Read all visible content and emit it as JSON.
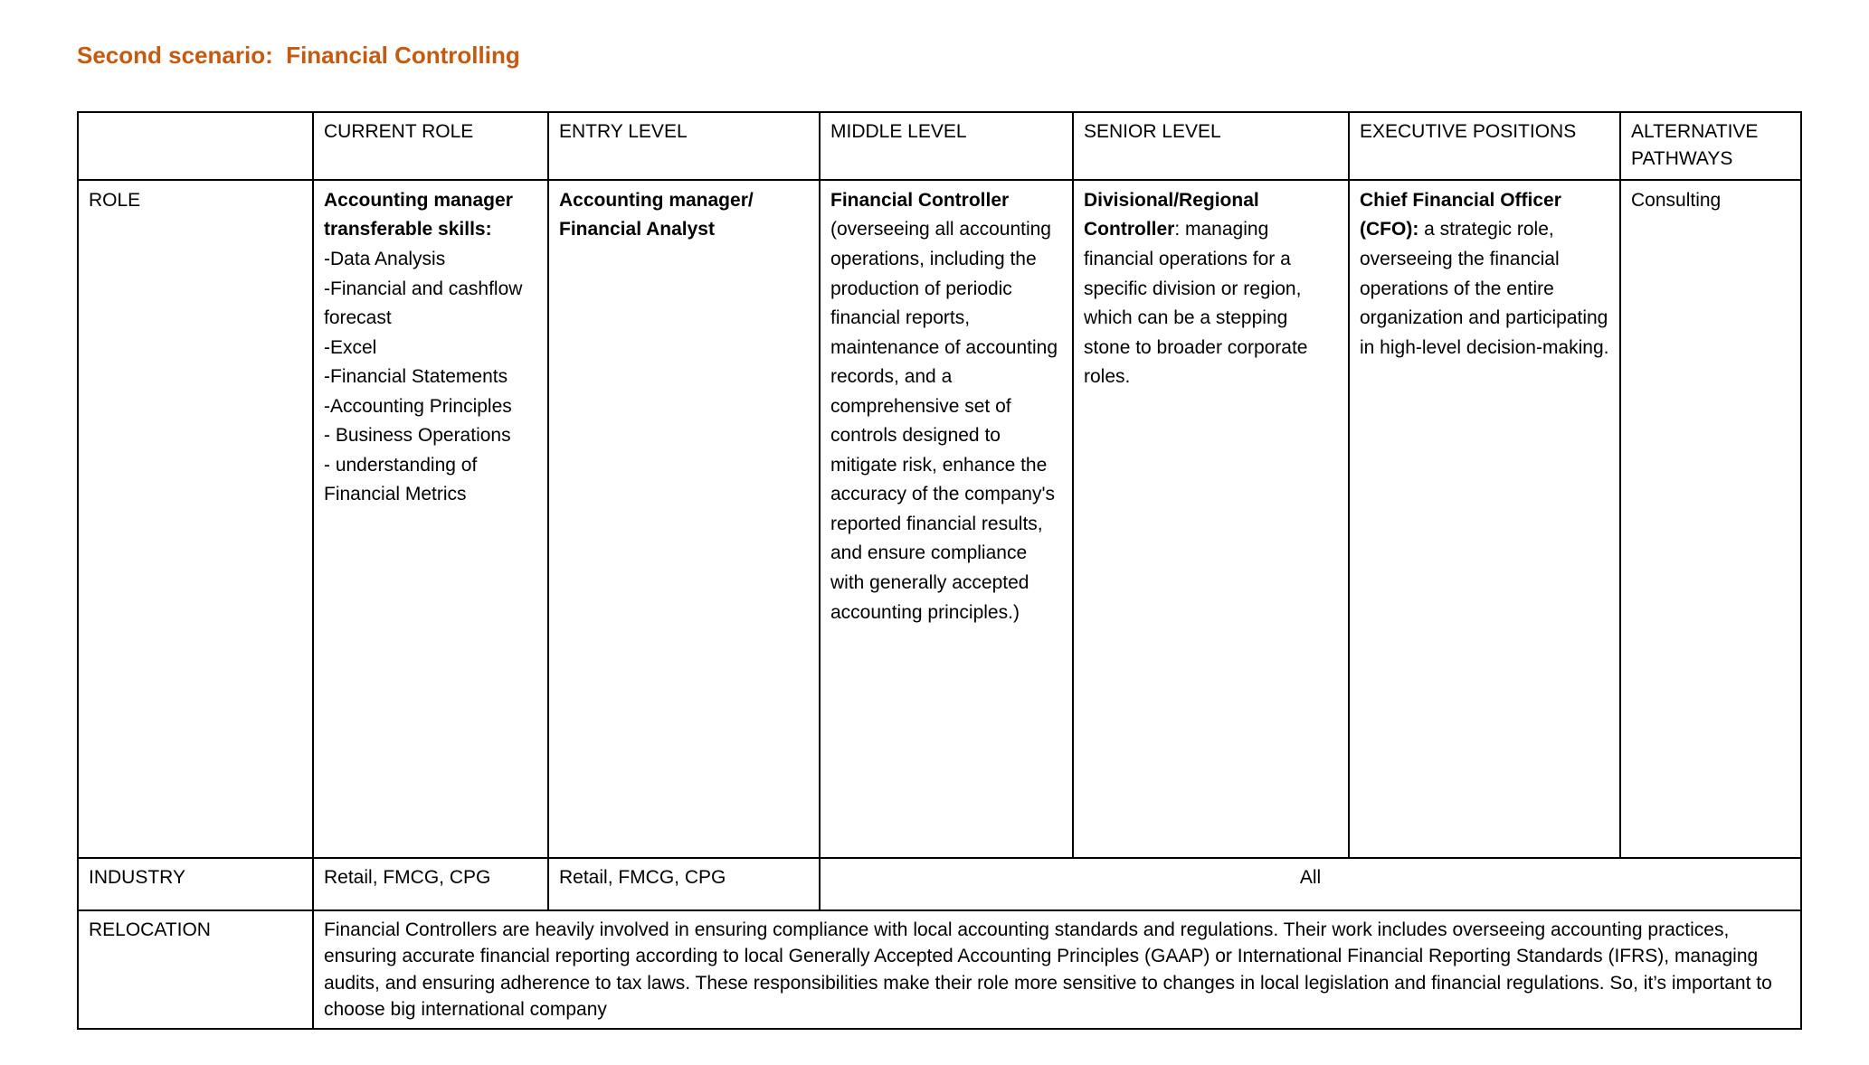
{
  "title": "Second scenario:  Financial Controlling",
  "accent_color": "#C55A11",
  "table": {
    "headers": [
      "",
      "CURRENT ROLE",
      "ENTRY LEVEL",
      "MIDDLE LEVEL",
      "SENIOR LEVEL",
      "EXECUTIVE POSITIONS",
      "ALTERNATIVE PATHWAYS"
    ],
    "role": {
      "label": "ROLE",
      "current": {
        "heading": "Accounting manager transferable skills:",
        "skills": [
          "-Data Analysis",
          "-Financial and cashflow forecast",
          "-Excel",
          "-Financial Statements",
          "-Accounting Principles",
          "- Business Operations",
          "- understanding of Financial Metrics"
        ]
      },
      "entry": {
        "heading": "Accounting manager/ Financial Analyst"
      },
      "middle": {
        "heading": "Financial Controller",
        "body": " (overseeing all accounting operations, including the production of periodic financial reports, maintenance of accounting records, and a comprehensive set of controls designed to mitigate risk, enhance the accuracy of the company's reported financial results, and ensure compliance with generally accepted accounting principles.)"
      },
      "senior": {
        "heading": "Divisional/Regional Controller",
        "body": ": managing financial operations for a specific division or region, which can be a stepping stone to broader corporate roles."
      },
      "executive": {
        "heading": "Chief Financial Officer (CFO):",
        "body": " a strategic role, overseeing the financial operations of the entire organization and participating in high-level decision-making."
      },
      "alternative": "Consulting"
    },
    "industry": {
      "label": "INDUSTRY",
      "current": "Retail, FMCG, CPG",
      "entry": "Retail, FMCG, CPG",
      "rest": "All"
    },
    "relocation": {
      "label": "RELOCATION",
      "text": "Financial Controllers are heavily involved in ensuring compliance with local accounting standards and regulations. Their work includes overseeing accounting practices, ensuring accurate financial reporting according to local Generally Accepted Accounting Principles (GAAP) or International Financial Reporting Standards (IFRS), managing audits, and ensuring adherence to tax laws. These responsibilities make their role more sensitive to changes in local legislation and financial regulations. So, it’s important to choose big international company"
    }
  }
}
